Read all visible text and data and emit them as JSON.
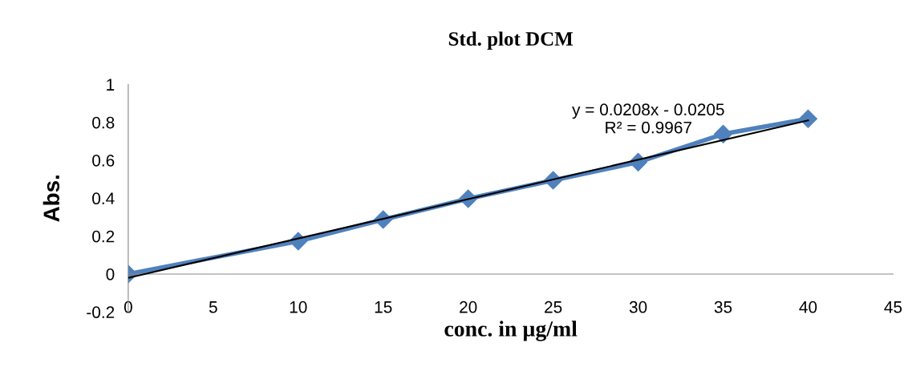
{
  "chart_data": {
    "type": "line",
    "title": "Std. plot DCM",
    "xlabel": "conc. in µg/ml",
    "ylabel": "Abs.",
    "x": [
      0,
      10,
      15,
      20,
      25,
      30,
      35,
      40
    ],
    "series": [
      {
        "color": "#4f81bd",
        "values": [
          0,
          0.173,
          0.287,
          0.397,
          0.494,
          0.59,
          0.738,
          0.819
        ],
        "marker": "diamond"
      },
      {
        "type": "line",
        "color": "#000000",
        "x": [
          0,
          40
        ],
        "values": [
          -0.02,
          0.81
        ],
        "marker": "none"
      }
    ],
    "annotations": [
      "y = 0.0208x - 0.0205\nR² = 0.9967"
    ],
    "xlim": [
      0,
      45
    ],
    "xticks": [
      0,
      5,
      10,
      15,
      20,
      25,
      30,
      35,
      40,
      45
    ],
    "ylim": [
      -0.2,
      1
    ],
    "yticks": [
      -0.2,
      0,
      0.2,
      0.4,
      0.6,
      0.8,
      1
    ],
    "grid": false,
    "legend": false,
    "line_style": "solid"
  }
}
